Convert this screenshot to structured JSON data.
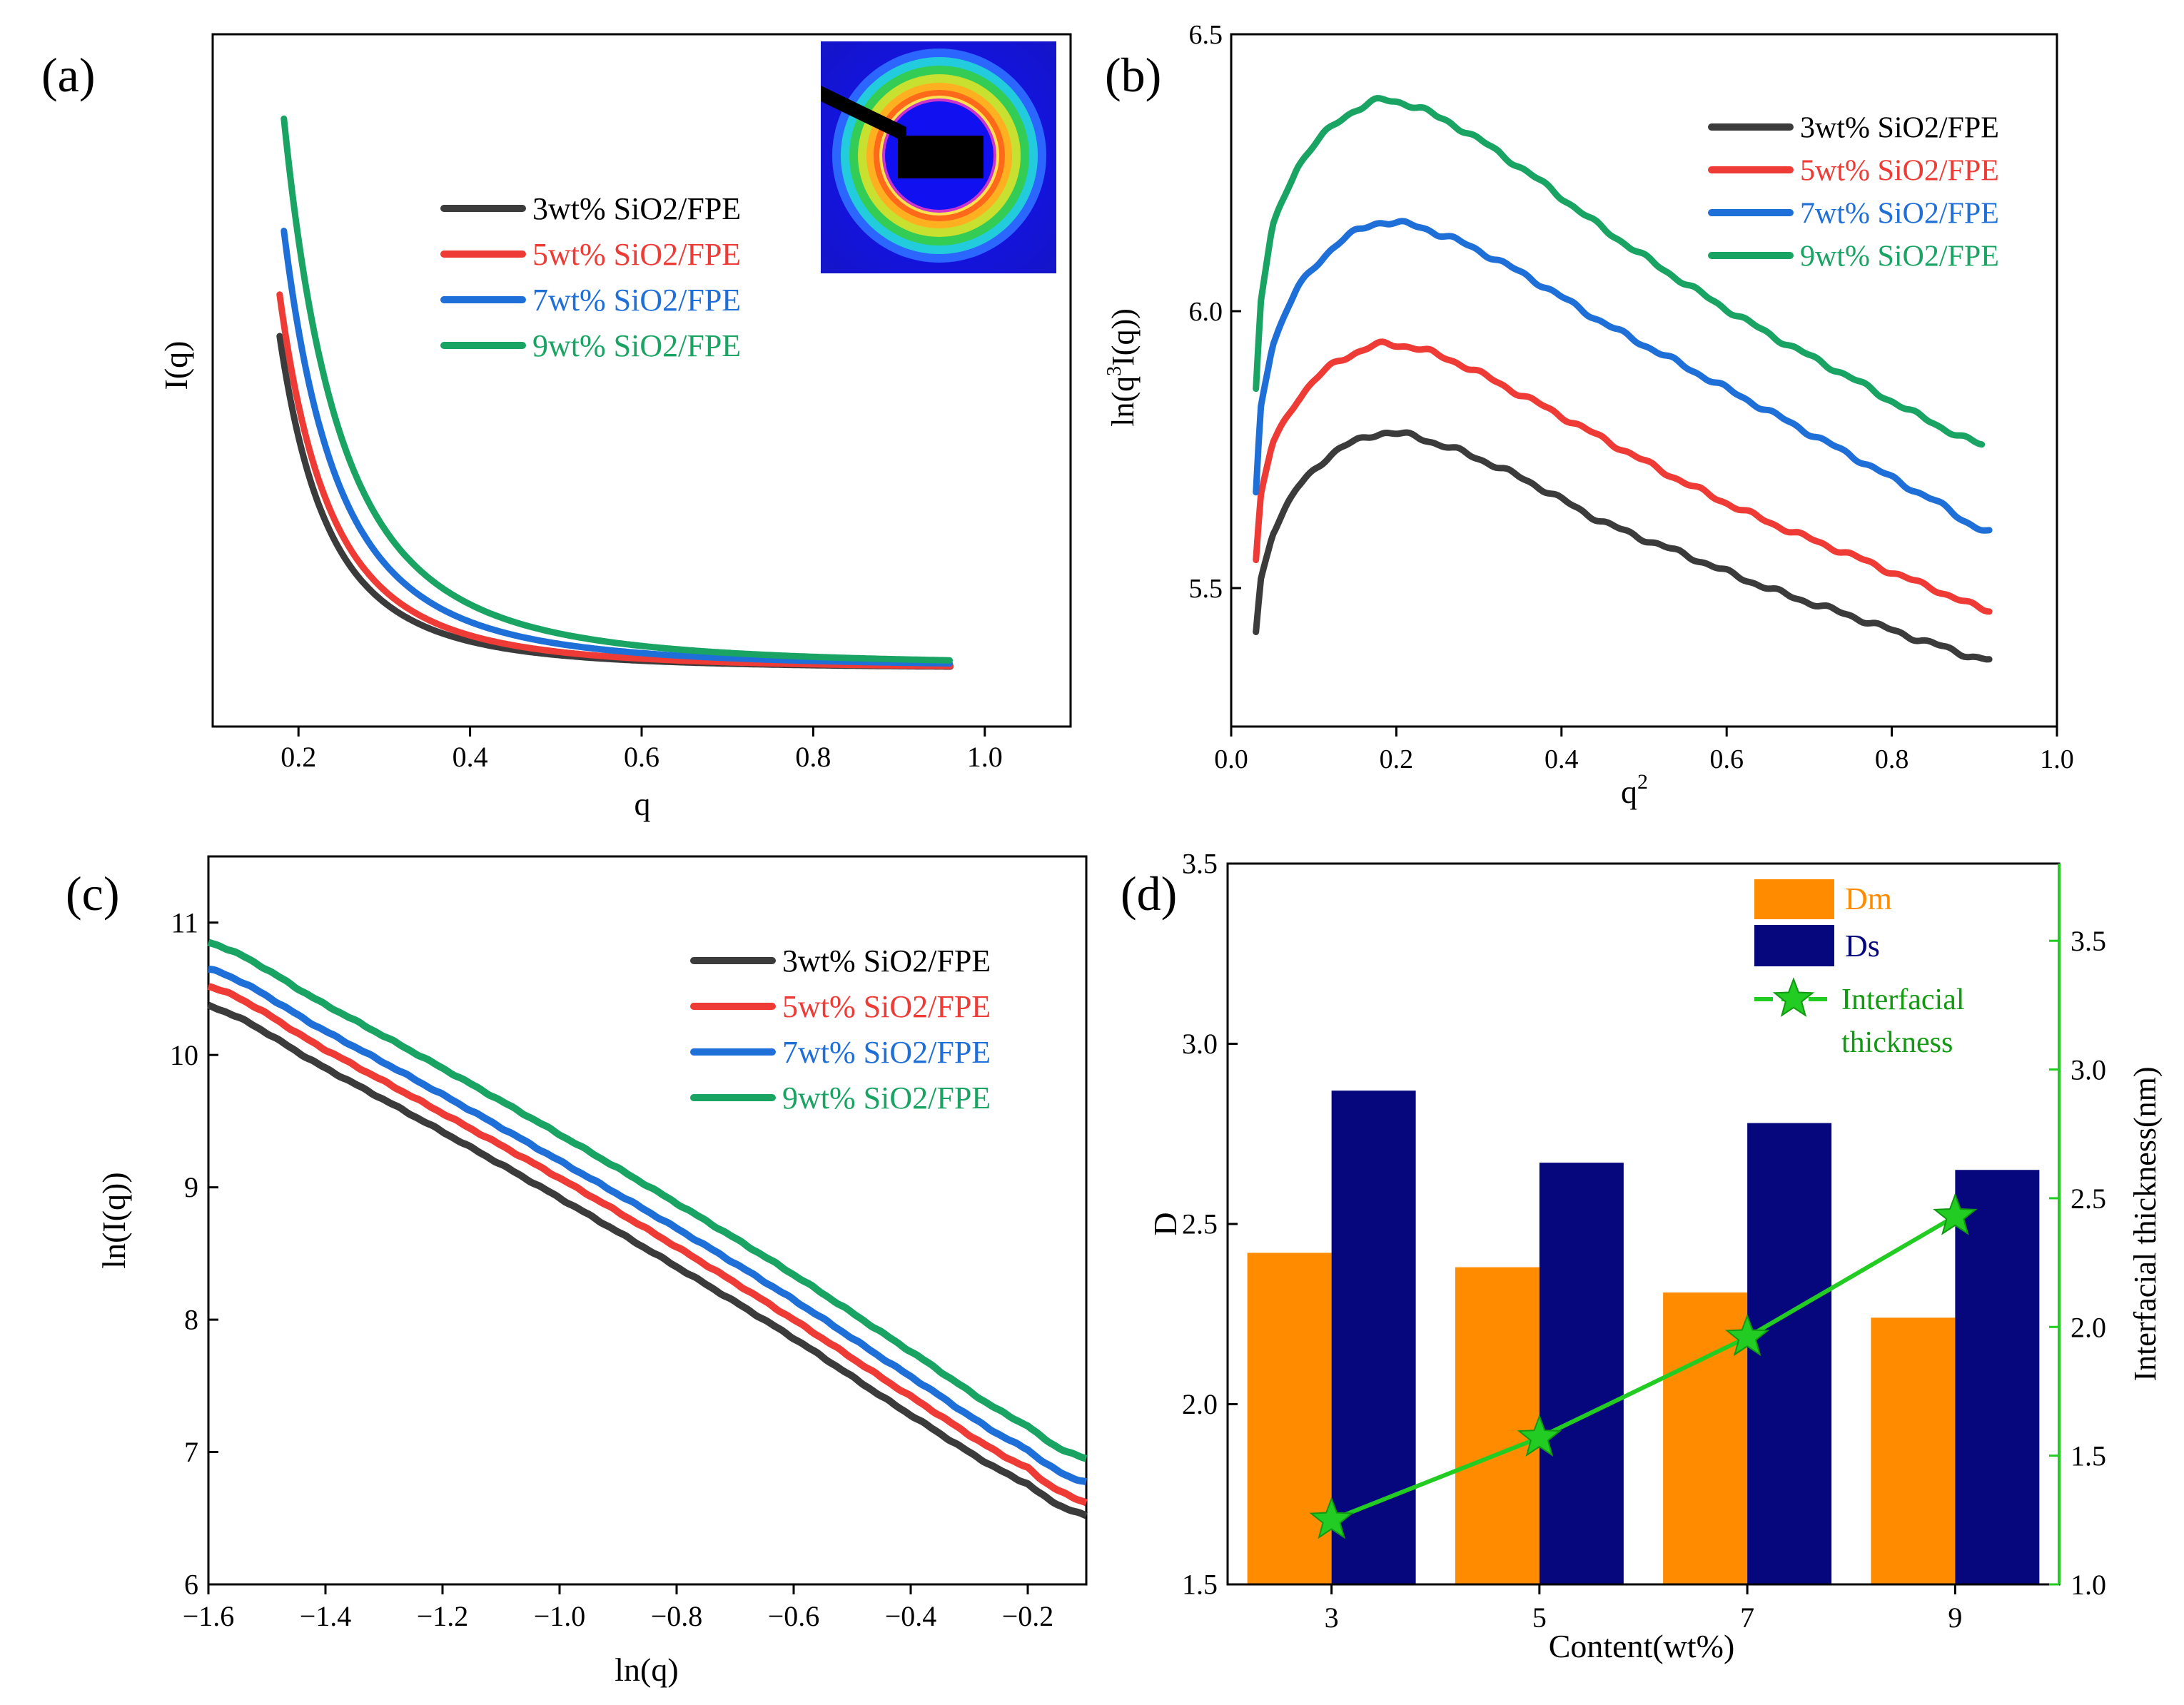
{
  "figure": {
    "colors": {
      "s3": "#3b3b3b",
      "s5": "#ef3b36",
      "s7": "#1f6fd8",
      "s9": "#19a463",
      "dm": "#ff8c00",
      "ds": "#07077d",
      "thickness": "#22cc22",
      "right_axis": "#22cc22"
    }
  },
  "chart_data": [
    {
      "panel": "a",
      "type": "line",
      "label": "(a)",
      "xlabel": "q",
      "ylabel": "I(q)",
      "xlim": [
        0.1,
        1.1
      ],
      "ylim": [
        0,
        100
      ],
      "xticks": [
        0.2,
        0.4,
        0.6,
        0.8,
        1.0
      ],
      "xtick_labels": [
        "0.2",
        "0.4",
        "0.6",
        "0.8",
        "1.0"
      ],
      "yticks_shown": false,
      "legend": [
        "3wt% SiO2/FPE",
        "5wt% SiO2/FPE",
        "7wt% SiO2/FPE",
        "9wt% SiO2/FPE"
      ],
      "legend_position": "upper-center",
      "inset": "2D SAXS scattering pattern",
      "series": [
        {
          "name": "3wt% SiO2/FPE",
          "q_start": 0.178,
          "q_end": 0.96,
          "I_plateau": 8.4,
          "amplitude": 48.0,
          "exponent": 3.1
        },
        {
          "name": "5wt% SiO2/FPE",
          "q_start": 0.178,
          "q_end": 0.96,
          "I_plateau": 8.4,
          "amplitude": 54.0,
          "exponent": 3.0
        },
        {
          "name": "7wt% SiO2/FPE",
          "q_start": 0.183,
          "q_end": 0.96,
          "I_plateau": 8.6,
          "amplitude": 63.0,
          "exponent": 2.9
        },
        {
          "name": "9wt% SiO2/FPE",
          "q_start": 0.183,
          "q_end": 0.96,
          "I_plateau": 8.8,
          "amplitude": 79.0,
          "exponent": 2.8
        }
      ]
    },
    {
      "panel": "b",
      "type": "line",
      "label": "(b)",
      "xlabel": "q",
      "xlabel_sup": "2",
      "ylabel_pre": "ln(q",
      "ylabel_sup": "3",
      "ylabel_post": "I(q))",
      "xlim": [
        0.0,
        1.0
      ],
      "ylim": [
        5.25,
        6.5
      ],
      "xticks": [
        0.0,
        0.2,
        0.4,
        0.6,
        0.8,
        1.0
      ],
      "xtick_labels": [
        "0.0",
        "0.2",
        "0.4",
        "0.6",
        "0.8",
        "1.0"
      ],
      "yticks": [
        5.5,
        6.0,
        6.5
      ],
      "ytick_labels": [
        "5.5",
        "6.0",
        "6.5"
      ],
      "legend": [
        "3wt% SiO2/FPE",
        "5wt% SiO2/FPE",
        "7wt% SiO2/FPE",
        "9wt% SiO2/FPE"
      ],
      "legend_position": "top-right",
      "series": [
        {
          "name": "3wt% SiO2/FPE",
          "x": [
            0.03,
            0.035,
            0.05,
            0.08,
            0.12,
            0.16,
            0.19,
            0.25,
            0.35,
            0.45,
            0.55,
            0.65,
            0.75,
            0.85,
            0.92
          ],
          "y": [
            5.42,
            5.51,
            5.6,
            5.68,
            5.74,
            5.77,
            5.78,
            5.76,
            5.7,
            5.62,
            5.56,
            5.5,
            5.45,
            5.4,
            5.37
          ]
        },
        {
          "name": "5wt% SiO2/FPE",
          "x": [
            0.03,
            0.035,
            0.05,
            0.08,
            0.12,
            0.16,
            0.19,
            0.25,
            0.35,
            0.45,
            0.55,
            0.65,
            0.75,
            0.85,
            0.92
          ],
          "y": [
            5.55,
            5.66,
            5.76,
            5.84,
            5.9,
            5.93,
            5.94,
            5.92,
            5.85,
            5.77,
            5.69,
            5.62,
            5.56,
            5.5,
            5.46
          ]
        },
        {
          "name": "7wt% SiO2/FPE",
          "x": [
            0.03,
            0.035,
            0.05,
            0.08,
            0.12,
            0.16,
            0.19,
            0.25,
            0.35,
            0.45,
            0.55,
            0.65,
            0.75,
            0.85,
            0.92
          ],
          "y": [
            5.67,
            5.82,
            5.94,
            6.04,
            6.11,
            6.15,
            6.16,
            6.14,
            6.07,
            5.98,
            5.9,
            5.82,
            5.74,
            5.66,
            5.6
          ]
        },
        {
          "name": "9wt% SiO2/FPE",
          "x": [
            0.03,
            0.035,
            0.05,
            0.08,
            0.12,
            0.16,
            0.19,
            0.25,
            0.35,
            0.45,
            0.55,
            0.65,
            0.75,
            0.85,
            0.91
          ],
          "y": [
            5.86,
            6.01,
            6.15,
            6.26,
            6.33,
            6.37,
            6.38,
            6.35,
            6.26,
            6.15,
            6.05,
            5.96,
            5.88,
            5.8,
            5.76
          ]
        }
      ]
    },
    {
      "panel": "c",
      "type": "line",
      "label": "(c)",
      "xlabel": "ln(q)",
      "ylabel": "ln(I(q))",
      "xlim": [
        -1.6,
        -0.1
      ],
      "ylim": [
        6,
        11.5
      ],
      "xticks": [
        -1.6,
        -1.4,
        -1.2,
        -1.0,
        -0.8,
        -0.6,
        -0.4,
        -0.2
      ],
      "xtick_labels": [
        "−1.6",
        "−1.4",
        "−1.2",
        "−1.0",
        "−0.8",
        "−0.6",
        "−0.4",
        "−0.2"
      ],
      "yticks": [
        6,
        7,
        8,
        9,
        10,
        11
      ],
      "ytick_labels": [
        "6",
        "7",
        "8",
        "9",
        "10",
        "11"
      ],
      "legend": [
        "3wt% SiO2/FPE",
        "5wt% SiO2/FPE",
        "7wt% SiO2/FPE",
        "9wt% SiO2/FPE"
      ],
      "legend_position": "upper-right",
      "series": [
        {
          "name": "3wt% SiO2/FPE",
          "x": [
            -1.6,
            -1.4,
            -1.2,
            -1.0,
            -0.8,
            -0.6,
            -0.4,
            -0.2,
            -0.1
          ],
          "y": [
            10.37,
            9.9,
            9.42,
            8.92,
            8.4,
            7.86,
            7.28,
            6.76,
            6.52
          ]
        },
        {
          "name": "5wt% SiO2/FPE",
          "x": [
            -1.6,
            -1.4,
            -1.2,
            -1.0,
            -0.8,
            -0.6,
            -0.4,
            -0.2,
            -0.1
          ],
          "y": [
            10.52,
            10.04,
            9.56,
            9.07,
            8.55,
            8.0,
            7.42,
            6.88,
            6.62
          ]
        },
        {
          "name": "7wt% SiO2/FPE",
          "x": [
            -1.6,
            -1.4,
            -1.2,
            -1.0,
            -0.8,
            -0.6,
            -0.4,
            -0.2,
            -0.1
          ],
          "y": [
            10.65,
            10.18,
            9.7,
            9.2,
            8.69,
            8.15,
            7.57,
            7.02,
            6.77
          ]
        },
        {
          "name": "9wt% SiO2/FPE",
          "x": [
            -1.6,
            -1.4,
            -1.2,
            -1.0,
            -0.8,
            -0.6,
            -0.4,
            -0.2,
            -0.1
          ],
          "y": [
            10.85,
            10.38,
            9.9,
            9.4,
            8.88,
            8.34,
            7.76,
            7.2,
            6.95
          ]
        }
      ]
    },
    {
      "panel": "d",
      "type": "bar",
      "label": "(d)",
      "categories": [
        "3",
        "5",
        "7",
        "9"
      ],
      "xlabel": "Content(wt%)",
      "ylabel": "D",
      "ylim": [
        1.5,
        3.5
      ],
      "yticks": [
        1.5,
        2.0,
        2.5,
        3.0,
        3.5
      ],
      "ytick_labels": [
        "1.5",
        "2.0",
        "2.5",
        "3.0",
        "3.5"
      ],
      "ylabel_right": "Interfacial thickness(nm)",
      "ylim_right": [
        1.0,
        3.8
      ],
      "yticks_right": [
        1.0,
        1.5,
        2.0,
        2.5,
        3.0,
        3.5
      ],
      "ytick_labels_right": [
        "1.0",
        "1.5",
        "2.0",
        "2.5",
        "3.0",
        "3.5"
      ],
      "series": [
        {
          "name": "Dm",
          "kind": "bar",
          "values": [
            2.42,
            2.38,
            2.31,
            2.24
          ]
        },
        {
          "name": "Ds",
          "kind": "bar",
          "values": [
            2.87,
            2.67,
            2.78,
            2.65
          ]
        },
        {
          "name": "Interfacial thickness",
          "kind": "line-star",
          "axis": "right",
          "values": [
            1.25,
            1.57,
            1.96,
            2.43
          ]
        }
      ],
      "legend": [
        "Dm",
        "Ds",
        "Interfacial",
        "thickness"
      ],
      "legend_position": "top-right"
    }
  ]
}
